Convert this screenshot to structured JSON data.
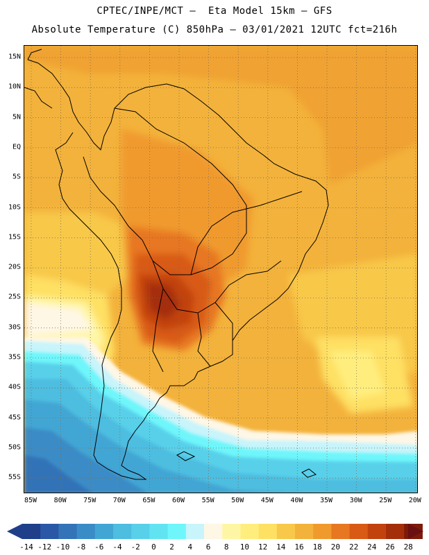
{
  "header": {
    "line1": "CPTEC/INPE/MCT –  Eta Model 15km – GFS",
    "line2": "Absolute Temperature (C) 850hPa – 03/01/2021 12UTC fct=216h"
  },
  "map": {
    "lat_labels": [
      "15N",
      "10N",
      "5N",
      "EQ",
      "5S",
      "10S",
      "15S",
      "20S",
      "25S",
      "30S",
      "35S",
      "40S",
      "45S",
      "50S",
      "55S"
    ],
    "lon_labels": [
      "85W",
      "80W",
      "75W",
      "70W",
      "65W",
      "60W",
      "55W",
      "50W",
      "45W",
      "40W",
      "35W",
      "30W",
      "25W",
      "20W"
    ]
  },
  "colorbar": {
    "labels": [
      "-14",
      "-12",
      "-10",
      "-8",
      "-6",
      "-4",
      "-2",
      "0",
      "2",
      "4",
      "6",
      "8",
      "10",
      "12",
      "14",
      "16",
      "18",
      "20",
      "22",
      "24",
      "26",
      "28"
    ],
    "colors": [
      "#1f3f8a",
      "#2a58a6",
      "#3373b8",
      "#3a8cc6",
      "#42a6d4",
      "#4dbde0",
      "#58d0ea",
      "#62e3f2",
      "#6ef6fb",
      "#c8f4fb",
      "#fff7e6",
      "#fff6a5",
      "#ffee7e",
      "#fee063",
      "#f8c84a",
      "#f3b23b",
      "#f09a2e",
      "#e77721",
      "#d85a14",
      "#c2420e",
      "#a42d0a",
      "#7d1a08"
    ]
  }
}
